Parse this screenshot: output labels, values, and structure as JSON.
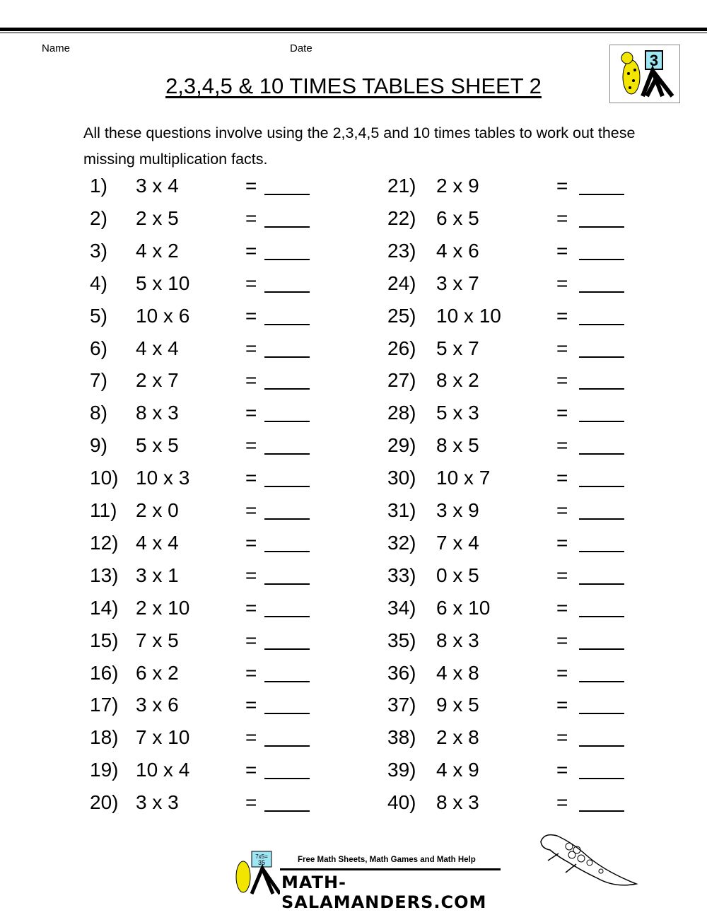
{
  "header": {
    "name_label": "Name",
    "date_label": "Date",
    "title": "2,3,4,5 & 10 TIMES TABLES SHEET 2",
    "logo_badge": "3"
  },
  "instructions": "All these questions involve using the 2,3,4,5 and 10 times tables to work out these missing multiplication facts.",
  "equals_sign": "=",
  "questions": [
    {
      "n": "1)",
      "q": "3 x 4"
    },
    {
      "n": "2)",
      "q": "2 x 5"
    },
    {
      "n": "3)",
      "q": "4 x 2"
    },
    {
      "n": "4)",
      "q": "5 x 10"
    },
    {
      "n": "5)",
      "q": "10 x 6"
    },
    {
      "n": "6)",
      "q": "4 x 4"
    },
    {
      "n": "7)",
      "q": "2 x 7"
    },
    {
      "n": "8)",
      "q": "8 x 3"
    },
    {
      "n": "9)",
      "q": "5 x 5"
    },
    {
      "n": "10)",
      "q": "10 x 3"
    },
    {
      "n": "11)",
      "q": "2 x 0"
    },
    {
      "n": "12)",
      "q": "4 x 4"
    },
    {
      "n": "13)",
      "q": "3 x 1"
    },
    {
      "n": "14)",
      "q": "2 x 10"
    },
    {
      "n": "15)",
      "q": "7 x 5"
    },
    {
      "n": "16)",
      "q": "6 x 2"
    },
    {
      "n": "17)",
      "q": "3 x 6"
    },
    {
      "n": "18)",
      "q": "7 x 10"
    },
    {
      "n": "19)",
      "q": "10 x 4"
    },
    {
      "n": "20)",
      "q": "3 x 3"
    },
    {
      "n": "21)",
      "q": "2 x 9"
    },
    {
      "n": "22)",
      "q": "6 x 5"
    },
    {
      "n": "23)",
      "q": "4 x 6"
    },
    {
      "n": "24)",
      "q": "3 x 7"
    },
    {
      "n": "25)",
      "q": "10 x 10"
    },
    {
      "n": "26)",
      "q": "5 x 7"
    },
    {
      "n": "27)",
      "q": "8 x 2"
    },
    {
      "n": "28)",
      "q": "5 x 3"
    },
    {
      "n": "29)",
      "q": "8 x 5"
    },
    {
      "n": "30)",
      "q": "10 x 7"
    },
    {
      "n": "31)",
      "q": "3 x 9"
    },
    {
      "n": "32)",
      "q": "7 x 4"
    },
    {
      "n": "33)",
      "q": "0 x 5"
    },
    {
      "n": "34)",
      "q": "6 x 10"
    },
    {
      "n": "35)",
      "q": "8 x 3"
    },
    {
      "n": "36)",
      "q": "4 x 8"
    },
    {
      "n": "37)",
      "q": "9 x 5"
    },
    {
      "n": "38)",
      "q": "2 x 8"
    },
    {
      "n": "39)",
      "q": "4 x 9"
    },
    {
      "n": "40)",
      "q": "8 x 3"
    }
  ],
  "footer": {
    "tagline": "Free Math Sheets, Math Games and Math Help",
    "site": "MATH-SALAMANDERS.COM",
    "board_text": "7x5= 35"
  },
  "colors": {
    "salamander_yellow": "#f2e600",
    "board_blue": "#9fe6f5"
  }
}
